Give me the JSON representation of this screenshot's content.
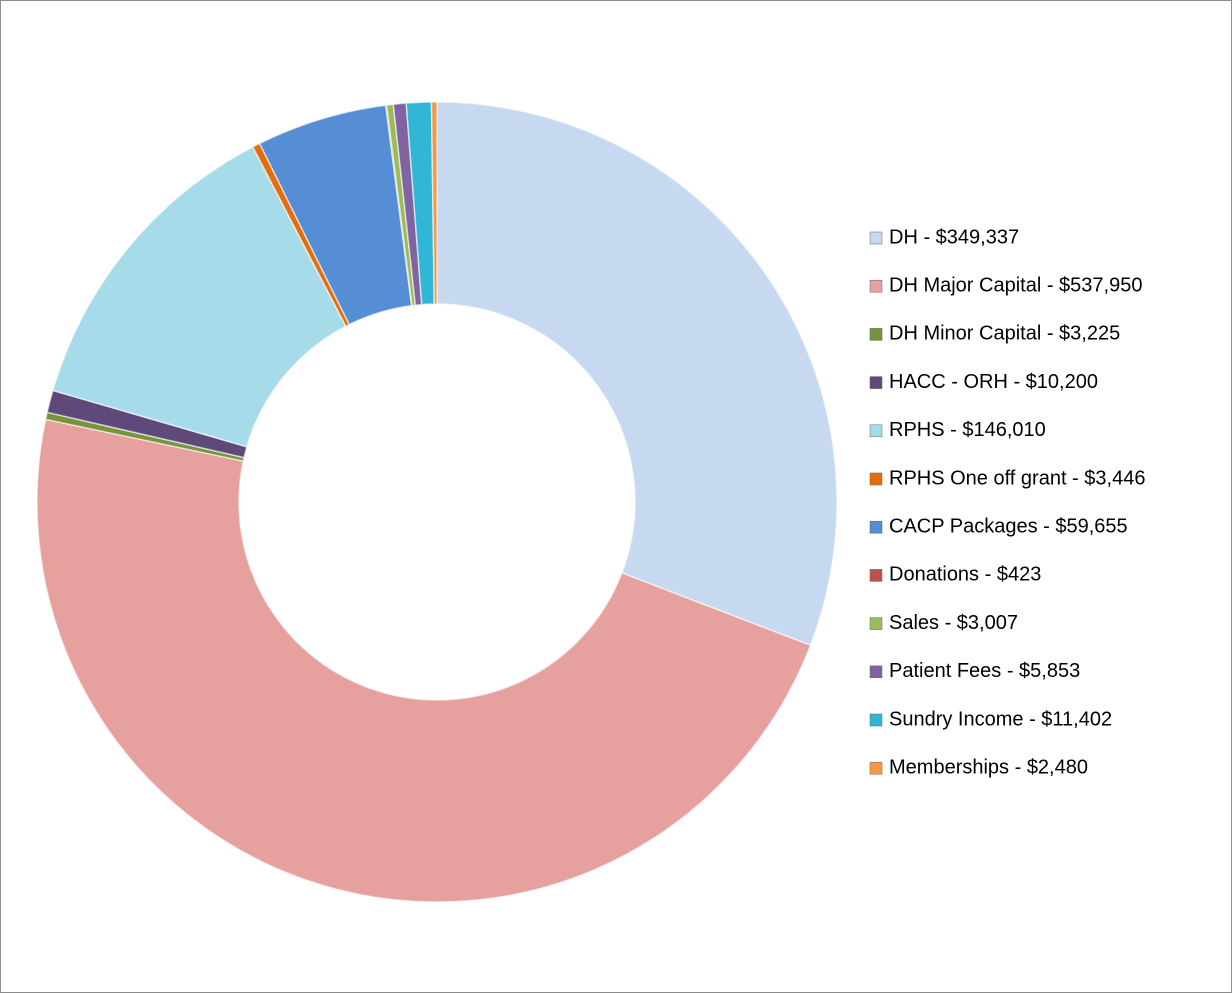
{
  "chart_data": {
    "type": "donut",
    "categories": [
      "DH - $349,337",
      "DH Major Capital - $537,950",
      "DH Minor Capital - $3,225",
      "HACC - ORH - $10,200",
      "RPHS - $146,010",
      "RPHS One off grant - $3,446",
      "CACP Packages - $59,655",
      "Donations - $423",
      "Sales - $3,007",
      "Patient Fees - $5,853",
      "Sundry Income - $11,402",
      "Memberships - $2,480"
    ],
    "values": [
      349337,
      537950,
      3225,
      10200,
      146010,
      3446,
      59655,
      423,
      3007,
      5853,
      11402,
      2480
    ],
    "colors": [
      "#c6d9f1",
      "#e6a19f",
      "#77933c",
      "#5f497a",
      "#a6dcea",
      "#e46c0a",
      "#558ed5",
      "#c0504d",
      "#9bbb59",
      "#8064a2",
      "#31b6d6",
      "#f79646"
    ],
    "legend": "right"
  }
}
